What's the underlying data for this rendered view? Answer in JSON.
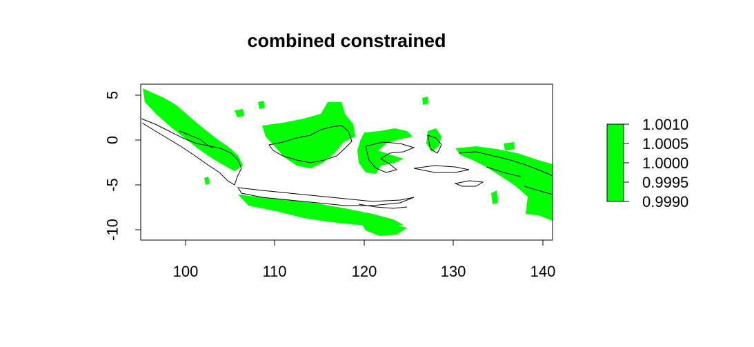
{
  "title": "combined constrained",
  "x_ticks": [
    "100",
    "110",
    "120",
    "130",
    "140"
  ],
  "y_ticks": [
    "5",
    "0",
    "-5",
    "-10"
  ],
  "legend": {
    "labels": [
      "1.0010",
      "1.0005",
      "1.0000",
      "0.9995",
      "0.9990"
    ],
    "fill_color": "#00ff00"
  },
  "colors": {
    "land_fill": "#00ff00",
    "outline": "#000000",
    "axis": "#000000"
  }
}
